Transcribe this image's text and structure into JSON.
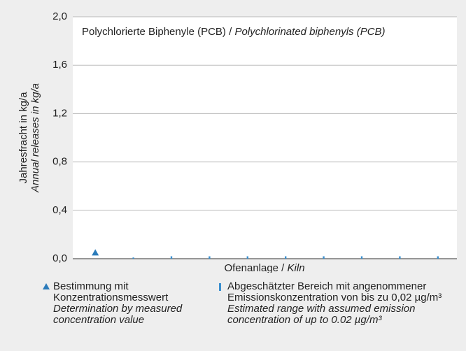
{
  "chart_data": {
    "type": "range-scatter",
    "title": [
      "Polychlorierte Biphenyle (PCB) / ",
      "Polychlorinated biphenyls (PCB)"
    ],
    "ylabel": [
      "Jahresfracht in kg/a",
      "Annual releases in kg/a"
    ],
    "xlabel": [
      "Ofenanlage / ",
      "Kiln"
    ],
    "categories": [
      null,
      null,
      null,
      null,
      null,
      null,
      null,
      null,
      null,
      null
    ],
    "series": [
      {
        "name": "Bestimmung mit Konzentrationsmesswert",
        "name_en": "Determination by measured concentration value",
        "color": "#2b7bba",
        "marker": "triangle",
        "values": [
          0.05,
          null,
          null,
          null,
          null,
          null,
          null,
          null,
          null,
          null
        ]
      },
      {
        "name": "Abgeschätzter Bereich mit angenommener Emissionskonzentration von bis zu 0,02 µg/m³",
        "name_en": "Estimated range with assumed emission concentration of up to 0.02 µg/m³",
        "color": "#3a8fcf",
        "marker": "range",
        "values": [
          null,
          0.01,
          0.02,
          0.02,
          0.02,
          0.02,
          0.02,
          0.02,
          0.02,
          0.02
        ]
      }
    ],
    "ylim": [
      0,
      2
    ],
    "yticks": [
      {
        "value": 0,
        "label": "0,0"
      },
      {
        "value": 0.4,
        "label": "0,4"
      },
      {
        "value": 0.8,
        "label": "0,8"
      },
      {
        "value": 1.2,
        "label": "1,2"
      },
      {
        "value": 1.6,
        "label": "1,6"
      },
      {
        "value": 2,
        "label": "2,0"
      }
    ],
    "grid": true
  }
}
